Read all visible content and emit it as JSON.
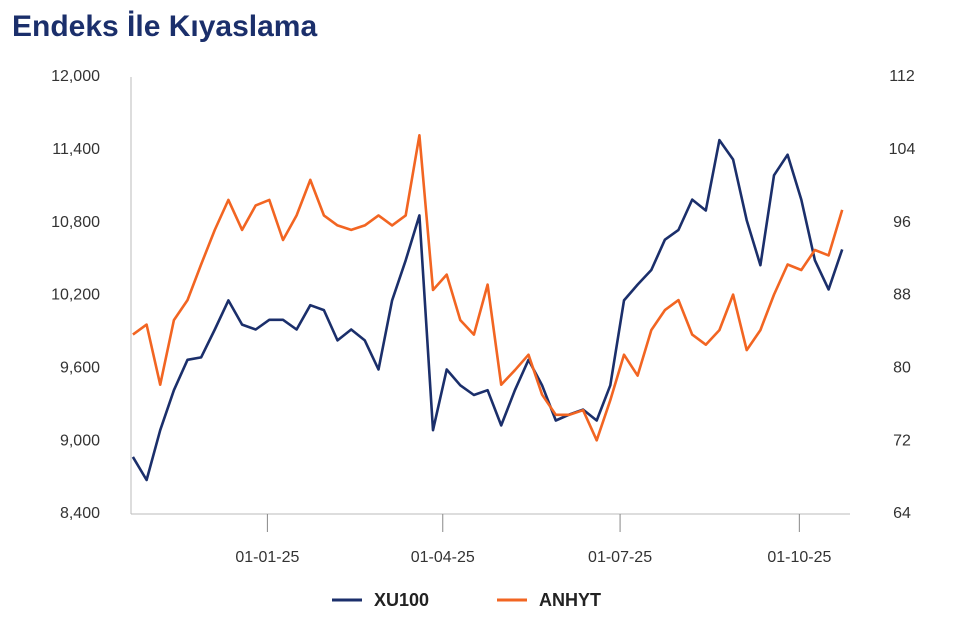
{
  "chart_data": {
    "type": "line",
    "title": "Endeks İle Kıyaslama",
    "x": [
      "2024-10-24",
      "2024-10-31",
      "2024-11-07",
      "2024-11-14",
      "2024-11-21",
      "2024-11-28",
      "2024-12-05",
      "2024-12-12",
      "2024-12-19",
      "2024-12-26",
      "2025-01-02",
      "2025-01-09",
      "2025-01-16",
      "2025-01-23",
      "2025-01-30",
      "2025-02-06",
      "2025-02-13",
      "2025-02-20",
      "2025-02-27",
      "2025-03-06",
      "2025-03-13",
      "2025-03-20",
      "2025-03-27",
      "2025-04-03",
      "2025-04-10",
      "2025-04-17",
      "2025-04-24",
      "2025-05-01",
      "2025-05-08",
      "2025-05-15",
      "2025-05-22",
      "2025-05-29",
      "2025-06-05",
      "2025-06-12",
      "2025-06-19",
      "2025-06-26",
      "2025-07-03",
      "2025-07-10",
      "2025-07-17",
      "2025-07-24",
      "2025-07-31",
      "2025-08-07",
      "2025-08-14",
      "2025-08-21",
      "2025-08-28",
      "2025-09-04",
      "2025-09-11",
      "2025-09-18",
      "2025-09-25",
      "2025-10-02",
      "2025-10-09",
      "2025-10-16",
      "2025-10-23"
    ],
    "series": [
      {
        "name": "XU100",
        "color": "#1b2f6b",
        "values": [
          8870,
          8680,
          9090,
          9420,
          9670,
          9690,
          9920,
          10160,
          9960,
          9920,
          10000,
          10000,
          9920,
          10120,
          10080,
          9830,
          9920,
          9830,
          9590,
          10160,
          10490,
          10860,
          9090,
          9590,
          9460,
          9380,
          9420,
          9130,
          9420,
          9670,
          9460,
          9170,
          9220,
          9260,
          9170,
          9460,
          10160,
          10290,
          10410,
          10660,
          10740,
          10990,
          10900,
          11480,
          11320,
          10820,
          10450,
          11190,
          11360,
          10990,
          10490,
          10250,
          10580
        ]
      },
      {
        "name": "ANHYT",
        "color": "#f26522",
        "axis": "y2",
        "values": [
          83.7,
          84.8,
          78.2,
          85.3,
          87.5,
          91.4,
          95.2,
          98.5,
          95.2,
          97.9,
          98.5,
          94.1,
          96.8,
          100.7,
          96.8,
          95.7,
          95.2,
          95.7,
          96.8,
          95.7,
          96.8,
          105.6,
          88.6,
          90.3,
          85.3,
          83.7,
          89.2,
          78.2,
          79.8,
          81.5,
          77.1,
          74.9,
          74.9,
          75.4,
          72.1,
          76.5,
          81.5,
          79.2,
          84.2,
          86.4,
          87.5,
          83.7,
          82.6,
          84.2,
          88.1,
          82.0,
          84.2,
          88.1,
          91.4,
          90.8,
          93.0,
          92.4,
          97.4
        ]
      }
    ],
    "xlim": [
      "2024-10-23",
      "2025-10-27"
    ],
    "xticks": [
      {
        "value": "2025-01-01",
        "label": "01-01-25"
      },
      {
        "value": "2025-04-01",
        "label": "01-04-25"
      },
      {
        "value": "2025-07-01",
        "label": "01-07-25"
      },
      {
        "value": "2025-10-01",
        "label": "01-10-25"
      }
    ],
    "ylim": [
      8400,
      12000
    ],
    "yticks": [
      {
        "value": 8400,
        "label": "8,400"
      },
      {
        "value": 9000,
        "label": "9,000"
      },
      {
        "value": 9600,
        "label": "9,600"
      },
      {
        "value": 10200,
        "label": "10,200"
      },
      {
        "value": 10800,
        "label": "10,800"
      },
      {
        "value": 11400,
        "label": "11,400"
      },
      {
        "value": 12000,
        "label": "12,000"
      }
    ],
    "y2lim": [
      64,
      112
    ],
    "y2ticks": [
      64,
      72,
      80,
      88,
      96,
      104,
      112
    ],
    "grid": false,
    "legend": "bottom"
  }
}
